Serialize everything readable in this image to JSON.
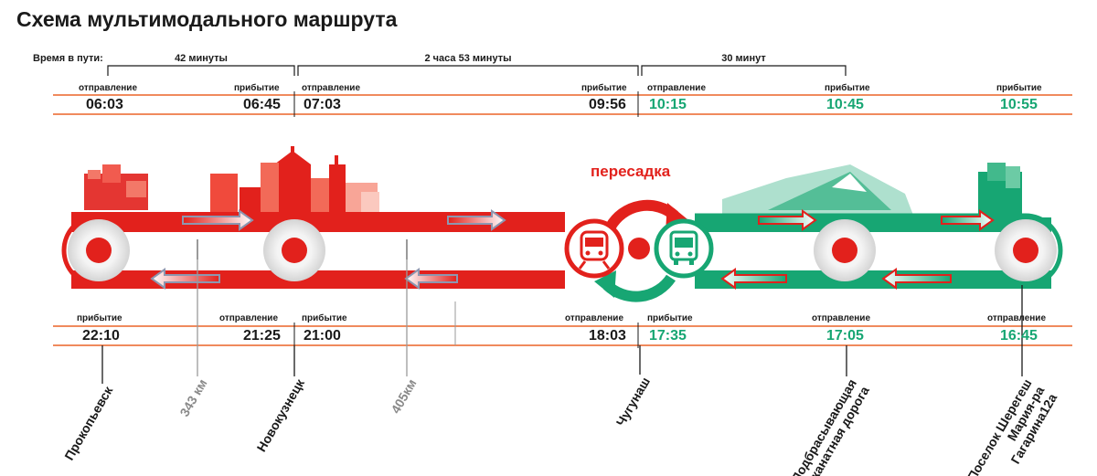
{
  "title": "Схема мультимодального маршрута",
  "travel_time_label": "Время в пути:",
  "durations": [
    "42 минуты",
    "2 часа 53 минуты",
    "30 минут"
  ],
  "transfer_label": "пересадка",
  "outbound": [
    {
      "label": "отправление",
      "time": "06:03"
    },
    {
      "label": "прибытие",
      "time": "06:45"
    },
    {
      "label": "отправление",
      "time": "07:03"
    },
    {
      "label": "прибытие",
      "time": "09:56"
    },
    {
      "label": "отправление",
      "time": "10:15"
    },
    {
      "label": "прибытие",
      "time": "10:45"
    },
    {
      "label": "прибытие",
      "time": "10:55"
    }
  ],
  "return": [
    {
      "label": "прибытие",
      "time": "22:10"
    },
    {
      "label": "отправление",
      "time": "21:25"
    },
    {
      "label": "прибытие",
      "time": "21:00"
    },
    {
      "label": "отправление",
      "time": "18:03"
    },
    {
      "label": "прибытие",
      "time": "17:35"
    },
    {
      "label": "отправление",
      "time": "17:05"
    },
    {
      "label": "отправление",
      "time": "16:45"
    }
  ],
  "places": {
    "prokopyevsk": "Прокопьевск",
    "km343": "343 км",
    "novokuznetsk": "Новокузнецк",
    "km405": "405км",
    "chugunash": "Чугунаш",
    "cable_line1": "Подбрасывающая",
    "cable_line2": "канатная дорога",
    "sheregesh_line1": "Поселок Шерегеш",
    "sheregesh_line2": "Мария-ра",
    "sheregesh_line3": "Гагарина12а"
  },
  "colors": {
    "red": "#e2211c",
    "green": "#17a673",
    "orange_line": "#f08a5d",
    "grey_arrow": "#8d97b0"
  },
  "icons": [
    "train-icon",
    "bus-icon",
    "cycle-arrows-icon",
    "city-skyline-icon",
    "mountain-icon"
  ]
}
